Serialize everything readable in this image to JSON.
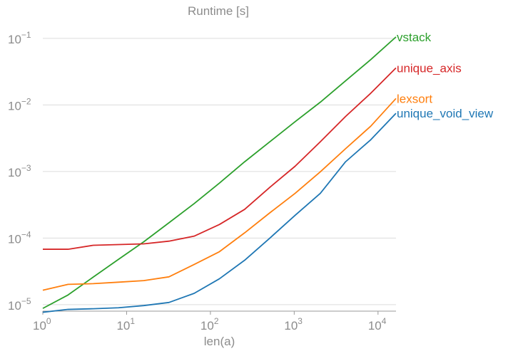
{
  "chart_data": {
    "type": "line",
    "title": "Runtime [s]",
    "xlabel": "len(a)",
    "ylabel": "",
    "xscale": "log",
    "yscale": "log",
    "xlim": [
      1,
      16384
    ],
    "ylim": [
      8e-06,
      0.18
    ],
    "grid": "horizontal",
    "legend": "inline labels at line ends",
    "x": [
      1,
      2,
      4,
      8,
      16,
      32,
      64,
      128,
      256,
      512,
      1024,
      2048,
      4096,
      8192,
      16384
    ],
    "x_ticks": [
      {
        "value": 1,
        "base": "10",
        "exp": "0"
      },
      {
        "value": 10,
        "base": "10",
        "exp": "1"
      },
      {
        "value": 100,
        "base": "10",
        "exp": "2"
      },
      {
        "value": 1000,
        "base": "10",
        "exp": "3"
      },
      {
        "value": 10000,
        "base": "10",
        "exp": "4"
      }
    ],
    "y_ticks": [
      {
        "value": 1e-05,
        "base": "10",
        "exp": "−5"
      },
      {
        "value": 0.0001,
        "base": "10",
        "exp": "−4"
      },
      {
        "value": 0.001,
        "base": "10",
        "exp": "−3"
      },
      {
        "value": 0.01,
        "base": "10",
        "exp": "−2"
      },
      {
        "value": 0.1,
        "base": "10",
        "exp": "−1"
      }
    ],
    "series": [
      {
        "name": "vstack",
        "color": "#2ca02c",
        "values": [
          8.8e-06,
          1.4e-05,
          2.6e-05,
          4.8e-05,
          8.8e-05,
          0.00017,
          0.00033,
          0.00067,
          0.0014,
          0.0028,
          0.0056,
          0.011,
          0.023,
          0.048,
          0.105
        ]
      },
      {
        "name": "unique_axis",
        "color": "#d62728",
        "values": [
          6.8e-05,
          6.8e-05,
          7.8e-05,
          8e-05,
          8.2e-05,
          9e-05,
          0.000107,
          0.00016,
          0.00027,
          0.00058,
          0.0012,
          0.0028,
          0.0067,
          0.015,
          0.036
        ]
      },
      {
        "name": "lexsort",
        "color": "#ff7f0e",
        "values": [
          1.65e-05,
          2.02e-05,
          2.07e-05,
          2.18e-05,
          2.3e-05,
          2.62e-05,
          4.02e-05,
          6.25e-05,
          0.00012,
          0.00024,
          0.00047,
          0.00099,
          0.0022,
          0.0048,
          0.0125
        ]
      },
      {
        "name": "unique_void_view",
        "color": "#1f77b4",
        "values": [
          7.7e-06,
          8.5e-06,
          8.7e-06,
          9e-06,
          9.7e-06,
          1.08e-05,
          1.48e-05,
          2.45e-05,
          4.65e-05,
          0.0001,
          0.00022,
          0.00047,
          0.0014,
          0.003,
          0.0075
        ]
      }
    ]
  }
}
